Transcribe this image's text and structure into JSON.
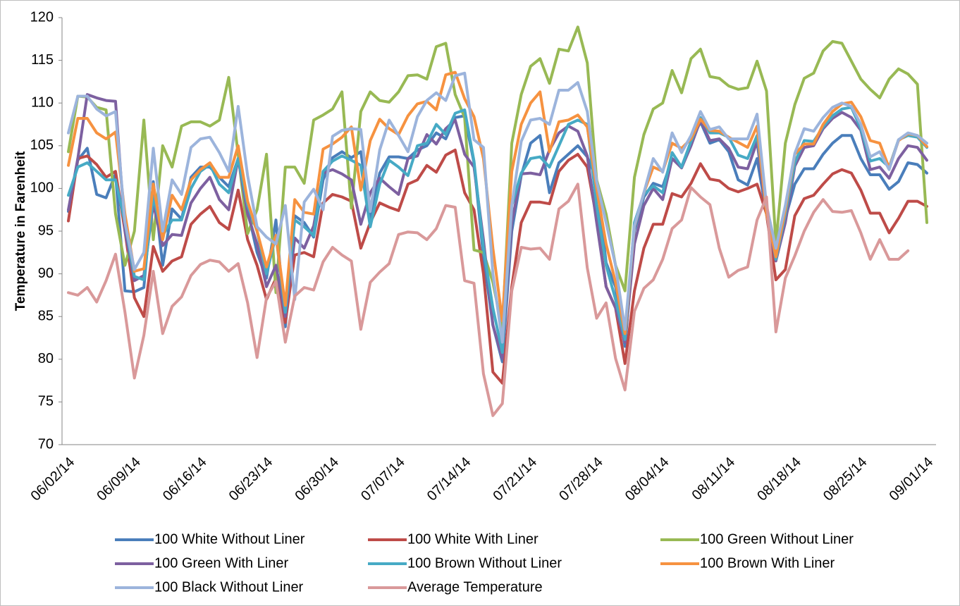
{
  "chart_data": {
    "type": "line",
    "y_label": "Temperature in Farenheit",
    "categories": [
      "06/02/14",
      null,
      null,
      null,
      null,
      null,
      null,
      "06/09/14",
      null,
      null,
      null,
      null,
      null,
      null,
      "06/16/14",
      null,
      null,
      null,
      null,
      null,
      null,
      "06/23/14",
      null,
      null,
      null,
      null,
      null,
      null,
      "06/30/14",
      null,
      null,
      null,
      null,
      null,
      null,
      "07/07/14",
      null,
      null,
      null,
      null,
      null,
      null,
      "07/14/14",
      null,
      null,
      null,
      null,
      null,
      null,
      "07/21/14",
      null,
      null,
      null,
      null,
      null,
      null,
      "07/28/14",
      null,
      null,
      null,
      null,
      null,
      null,
      "08/04/14",
      null,
      null,
      null,
      null,
      null,
      null,
      "08/11/14",
      null,
      null,
      null,
      null,
      null,
      null,
      "08/18/14",
      null,
      null,
      null,
      null,
      null,
      null,
      "08/25/14",
      null,
      null,
      null,
      null,
      null,
      null,
      "09/01/14"
    ],
    "ylim": [
      70,
      120
    ],
    "yticks": [
      70,
      75,
      80,
      85,
      90,
      95,
      100,
      105,
      110,
      115,
      120
    ],
    "grid": false,
    "legend": "bottom",
    "series": [
      {
        "name": "100 White Without Liner",
        "color": "#4a7ebb",
        "values": [
          97.3,
          103.3,
          104.7,
          99.3,
          98.9,
          101.7,
          88,
          87.9,
          88.4,
          100.8,
          91,
          97.6,
          96.4,
          101.3,
          102.5,
          102.5,
          101.3,
          100.2,
          103.5,
          97.5,
          92.5,
          89.5,
          96.3,
          83.8,
          96.8,
          96,
          94.3,
          101,
          103.6,
          104.3,
          103.6,
          104.3,
          96.5,
          101.8,
          103.7,
          103.7,
          103.5,
          104.5,
          105,
          106.5,
          105.8,
          108.3,
          108.5,
          103,
          92,
          84,
          79.7,
          95,
          101.5,
          105.3,
          106.2,
          99.5,
          103,
          104,
          105,
          103.7,
          101,
          91.3,
          88.5,
          81.5,
          95,
          99,
          100.6,
          100.2,
          103.5,
          102.5,
          105.5,
          107.8,
          105.3,
          105.7,
          104.3,
          101,
          100.4,
          103.5,
          97,
          92,
          96.5,
          100.5,
          102.3,
          102.3,
          104,
          105.3,
          106.2,
          106.2,
          103.5,
          101.6,
          101.6,
          99.9,
          100.8,
          103,
          102.8,
          101.8
        ]
      },
      {
        "name": "100 White With Liner",
        "color": "#be4b48",
        "values": [
          96.2,
          103.5,
          103.8,
          102.8,
          101.3,
          102,
          95,
          87.2,
          85,
          93.2,
          90.3,
          91.5,
          92,
          95.8,
          97,
          97.9,
          96,
          95.2,
          99.8,
          94,
          91,
          87,
          89.5,
          84.3,
          92.2,
          92.5,
          92,
          98.3,
          99.3,
          99,
          98.5,
          93,
          96,
          98.3,
          97.8,
          97.4,
          100.5,
          101,
          102.7,
          101.9,
          103.9,
          104.5,
          99.5,
          97.5,
          90,
          78.5,
          77.2,
          88.5,
          96,
          98.4,
          98.4,
          98.2,
          102,
          103.3,
          104,
          102.5,
          96.5,
          88.5,
          86,
          79.5,
          88,
          93,
          95.8,
          95.8,
          99.4,
          99,
          100.6,
          102.9,
          101.1,
          100.9,
          100,
          99.6,
          100,
          100.5,
          97,
          89.3,
          90.5,
          96.8,
          98.8,
          99.2,
          100.5,
          101.7,
          102.2,
          101.8,
          99.8,
          97.1,
          97.1,
          94.8,
          96.5,
          98.5,
          98.5,
          97.9
        ]
      },
      {
        "name": "100 Green Without Liner",
        "color": "#98b954",
        "values": [
          104.3,
          110.8,
          110.7,
          109.5,
          109.2,
          97,
          91,
          95,
          108,
          94,
          105,
          102.5,
          107.3,
          107.8,
          107.8,
          107.3,
          108,
          113,
          104,
          94.7,
          97.5,
          104,
          87.8,
          102.5,
          102.5,
          100.6,
          108,
          108.6,
          109.3,
          111.3,
          97.7,
          109,
          111.3,
          110.3,
          110.1,
          111.3,
          113.2,
          113.3,
          112.8,
          116.6,
          117,
          111,
          108.3,
          92.8,
          92.5,
          89,
          83.5,
          105.3,
          111,
          114.3,
          115.2,
          112.3,
          116.3,
          116.1,
          118.9,
          114.7,
          101,
          97,
          91,
          88,
          101.3,
          106.3,
          109.3,
          110,
          113.8,
          111.2,
          115.2,
          116.3,
          113.1,
          112.9,
          112,
          111.6,
          111.8,
          114.9,
          111.4,
          93.6,
          105.3,
          109.8,
          112.9,
          113.5,
          116.1,
          117.2,
          117,
          114.9,
          112.8,
          111.6,
          110.6,
          112.8,
          114,
          113.4,
          112.2,
          96
        ]
      },
      {
        "name": "100 Green With Liner",
        "color": "#7d60a0",
        "values": [
          97.5,
          103.5,
          111,
          110.6,
          110.3,
          110.2,
          95,
          89.2,
          89.8,
          98.2,
          93.3,
          94.6,
          94.5,
          98.3,
          100,
          101.3,
          98.7,
          97.5,
          103.5,
          97,
          93.5,
          88.5,
          91,
          85,
          94.2,
          93,
          95.6,
          101.8,
          102.2,
          101.7,
          101,
          95.8,
          99.5,
          101.2,
          100.2,
          99.3,
          103.5,
          103.8,
          106.3,
          105.2,
          107,
          108,
          104,
          102.5,
          94,
          84,
          80.1,
          96,
          101.7,
          101.8,
          101.6,
          104.5,
          106.5,
          107.3,
          106.7,
          103.8,
          96,
          88.5,
          86,
          82,
          93.5,
          98,
          100,
          98.7,
          103.5,
          102.4,
          105,
          108,
          105.6,
          105.8,
          104.7,
          102.5,
          102.3,
          105.5,
          97,
          91.5,
          96,
          102.6,
          104.8,
          105,
          107,
          108.2,
          108.9,
          108.3,
          106.8,
          102.2,
          102.5,
          101.2,
          103.5,
          105,
          104.8,
          103.3
        ]
      },
      {
        "name": "100 Brown Without Liner",
        "color": "#46aac5",
        "values": [
          99.2,
          102.5,
          103,
          102,
          101,
          101,
          96,
          89.7,
          89.3,
          99,
          94.5,
          96.3,
          96.3,
          100,
          102,
          102.8,
          100.5,
          99.5,
          103.5,
          98,
          95,
          90,
          94.5,
          85.5,
          96.3,
          95.5,
          94.5,
          102,
          103.2,
          103.8,
          103.3,
          102.7,
          95.5,
          100.5,
          103.3,
          102.5,
          101.5,
          105,
          105.3,
          107.5,
          106.3,
          108.8,
          109.2,
          103.2,
          93,
          86,
          80.8,
          98,
          101.8,
          103.5,
          103.7,
          102.5,
          105,
          107.5,
          108,
          107.5,
          98,
          91,
          87,
          82.3,
          96,
          99.3,
          100.3,
          99.5,
          104.2,
          102.5,
          105.5,
          108.3,
          106.5,
          106.5,
          106,
          103.9,
          103.5,
          106.2,
          98,
          91.7,
          97,
          103,
          105.6,
          105.5,
          107.2,
          108.5,
          109.3,
          109.5,
          107,
          103.2,
          103.5,
          102.5,
          105.7,
          106.2,
          106,
          104.8
        ]
      },
      {
        "name": "100 Brown With Liner",
        "color": "#f69240",
        "values": [
          102.7,
          108.2,
          108.2,
          106.5,
          105.8,
          106.6,
          97,
          90.3,
          90.6,
          100.5,
          94,
          99.2,
          97.5,
          101,
          102.2,
          103,
          101.3,
          101.3,
          105,
          98.5,
          95,
          90.8,
          94.5,
          86.3,
          98.7,
          97.2,
          97,
          104.6,
          105.2,
          106,
          107.2,
          99.8,
          105.6,
          108.1,
          107,
          106.3,
          108.5,
          109.9,
          110.2,
          109.2,
          113.3,
          113.6,
          110.5,
          108.4,
          103.5,
          93,
          84.5,
          102,
          107.5,
          110,
          111.3,
          104.3,
          107.8,
          108,
          108.6,
          107.2,
          100,
          93.5,
          89,
          83,
          95.5,
          99.5,
          102.5,
          102,
          105.3,
          104.7,
          105.8,
          108.1,
          106.8,
          106.7,
          106,
          105.4,
          104.8,
          107.3,
          97,
          92,
          97.5,
          104,
          105.2,
          105.2,
          107.5,
          109,
          109.9,
          110.1,
          108.4,
          105.6,
          105.3,
          102.4,
          105.6,
          106.4,
          106.2,
          104.9
        ]
      },
      {
        "name": "100 Black Without Liner",
        "color": "#9cb4dc",
        "values": [
          106.5,
          110.8,
          110.8,
          109.3,
          108.5,
          109,
          96,
          90.5,
          92.5,
          104.7,
          95,
          101,
          99.3,
          104.8,
          105.8,
          106,
          104.2,
          102,
          109.6,
          101.5,
          95.5,
          94.3,
          93.5,
          98,
          87,
          98.4,
          99.9,
          97.5,
          106.1,
          106.8,
          107,
          106.9,
          97.3,
          104.5,
          108,
          106.2,
          104.3,
          108.4,
          110.3,
          111.2,
          110.3,
          113.2,
          113.5,
          105.7,
          104.8,
          90,
          82,
          98,
          105.5,
          108,
          108.2,
          107.5,
          111.5,
          111.5,
          112.4,
          109,
          100.8,
          96,
          91,
          83.5,
          95.6,
          99.5,
          103.5,
          101.9,
          106.5,
          104.2,
          106.2,
          109,
          106.9,
          107.2,
          105.8,
          105.8,
          105.8,
          108.7,
          98,
          93,
          98,
          104.1,
          107,
          106.7,
          108.3,
          109.5,
          110,
          109.6,
          107.5,
          103.7,
          104.3,
          102.2,
          105.7,
          106.5,
          106.2,
          105.3
        ]
      },
      {
        "name": "Average Temperature",
        "color": "#d9999a",
        "values": [
          87.8,
          87.5,
          88.4,
          86.7,
          89.2,
          92.3,
          85.5,
          77.8,
          82.8,
          90.3,
          83,
          86.2,
          87.3,
          89.8,
          91.1,
          91.6,
          91.4,
          90.3,
          91.2,
          86.6,
          80.2,
          87.2,
          89.1,
          82,
          87.4,
          88.4,
          88.1,
          91.4,
          93.1,
          92.2,
          91.5,
          83.5,
          89,
          90.2,
          91.2,
          94.6,
          94.9,
          94.8,
          94,
          95.3,
          98,
          97.8,
          89.2,
          88.9,
          78.3,
          73.4,
          74.8,
          88,
          93.1,
          92.9,
          93,
          91.7,
          97.6,
          98.5,
          100.5,
          90.7,
          84.8,
          86.6,
          80.1,
          76.4,
          85.6,
          88.3,
          89.3,
          91.7,
          95.3,
          96.3,
          100.1,
          99,
          98.1,
          93,
          89.6,
          90.4,
          90.8,
          96.3,
          99,
          83.2,
          89.5,
          92.1,
          95,
          97.2,
          98.7,
          97.3,
          97.2,
          97.4,
          94.8,
          91.7,
          94,
          91.7,
          91.7,
          92.7,
          null,
          null
        ]
      }
    ]
  }
}
